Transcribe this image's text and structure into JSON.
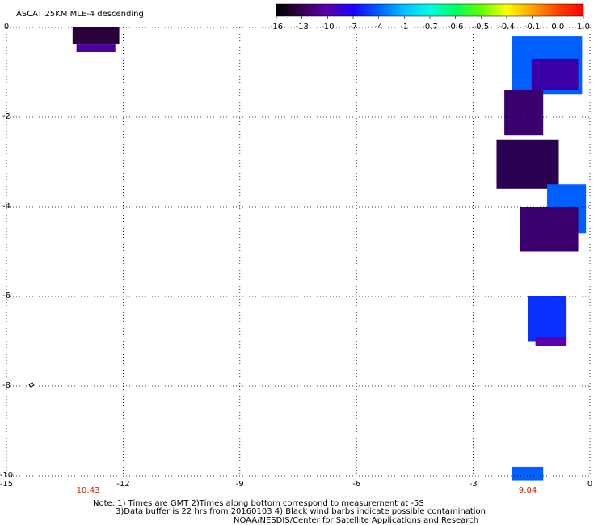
{
  "header": {
    "title": "ASCAT 25KM MLE-4 descending"
  },
  "colorbar": {
    "labels": [
      "-16",
      "-13",
      "-10",
      "-7",
      "-4",
      "-1",
      "-0.7",
      "-0.6",
      "-0.5",
      "-0.4",
      "-0.1",
      "0.0",
      "1.0"
    ],
    "colors": [
      "#000000",
      "#3a0050",
      "#5a00b0",
      "#1a00ff",
      "#0060ff",
      "#00c0ff",
      "#00ffe0",
      "#00ff60",
      "#60ff00",
      "#ffff00",
      "#ffa000",
      "#ff4000",
      "#ff0000"
    ]
  },
  "chart_data": {
    "type": "heatmap",
    "title": "ASCAT 25KM MLE-4 descending",
    "xlim": [
      -15,
      0
    ],
    "ylim": [
      -10,
      0
    ],
    "x_ticks": [
      "-15",
      "-12",
      "-9",
      "-6",
      "-3",
      "0"
    ],
    "y_ticks": [
      "0",
      "-2",
      "-4",
      "-6",
      "-8",
      "-10"
    ],
    "grid": true,
    "time_labels": [
      {
        "text": "10:43",
        "x": -12.9
      },
      {
        "text": "9:04",
        "x": -1.6
      }
    ],
    "cells": [
      {
        "x0": -13.3,
        "x1": -12.1,
        "y0": 0.0,
        "y1": -0.38,
        "color": "#2a0038"
      },
      {
        "x0": -13.2,
        "x1": -12.2,
        "y0": -0.38,
        "y1": -0.55,
        "color": "#4a00a0"
      },
      {
        "x0": -2.0,
        "x1": -0.2,
        "y0": -0.2,
        "y1": -1.5,
        "color": "#0060ff"
      },
      {
        "x0": -1.5,
        "x1": -0.3,
        "y0": -0.7,
        "y1": -1.4,
        "color": "#3a00a8"
      },
      {
        "x0": -2.2,
        "x1": -1.2,
        "y0": -1.4,
        "y1": -2.4,
        "color": "#3a0070"
      },
      {
        "x0": -2.4,
        "x1": -0.8,
        "y0": -2.5,
        "y1": -3.6,
        "color": "#2a0050"
      },
      {
        "x0": -1.1,
        "x1": -0.1,
        "y0": -3.5,
        "y1": -4.6,
        "color": "#0060ff"
      },
      {
        "x0": -1.8,
        "x1": -0.3,
        "y0": -4.0,
        "y1": -5.0,
        "color": "#3a0070"
      },
      {
        "x0": -1.6,
        "x1": -0.6,
        "y0": -6.0,
        "y1": -7.0,
        "color": "#0a30ff"
      },
      {
        "x0": -1.4,
        "x1": -0.6,
        "y0": -6.9,
        "y1": -7.1,
        "color": "#5a00b0"
      },
      {
        "x0": -2.0,
        "x1": -1.2,
        "y0": -9.8,
        "y1": -10.1,
        "color": "#0060ff"
      }
    ]
  },
  "footer": {
    "line1": "Note: 1) Times are GMT 2)Times along bottom correspond to measurement at -5S",
    "line2": "3)Data buffer is 22 hrs from 20160103 4) Black wind barbs indicate possible contamination",
    "line3": "NOAA/NESDIS/Center for Satellite Applications and Research"
  }
}
